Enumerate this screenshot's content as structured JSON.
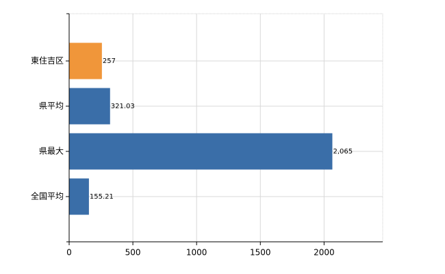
{
  "chart_data": {
    "type": "hbar",
    "categories": [
      "東住吉区",
      "県平均",
      "県最大",
      "全国平均"
    ],
    "values": [
      257,
      321.03,
      2065,
      155.21
    ],
    "value_labels": [
      "257",
      "321.03",
      "2,065",
      "155.21"
    ],
    "colors": [
      "#f0963a",
      "#3a6ea8",
      "#3a6ea8",
      "#3a6ea8"
    ],
    "xlim": [
      0,
      2460
    ],
    "xticks": [
      0,
      500,
      1000,
      1500,
      2000
    ],
    "grid": true
  }
}
